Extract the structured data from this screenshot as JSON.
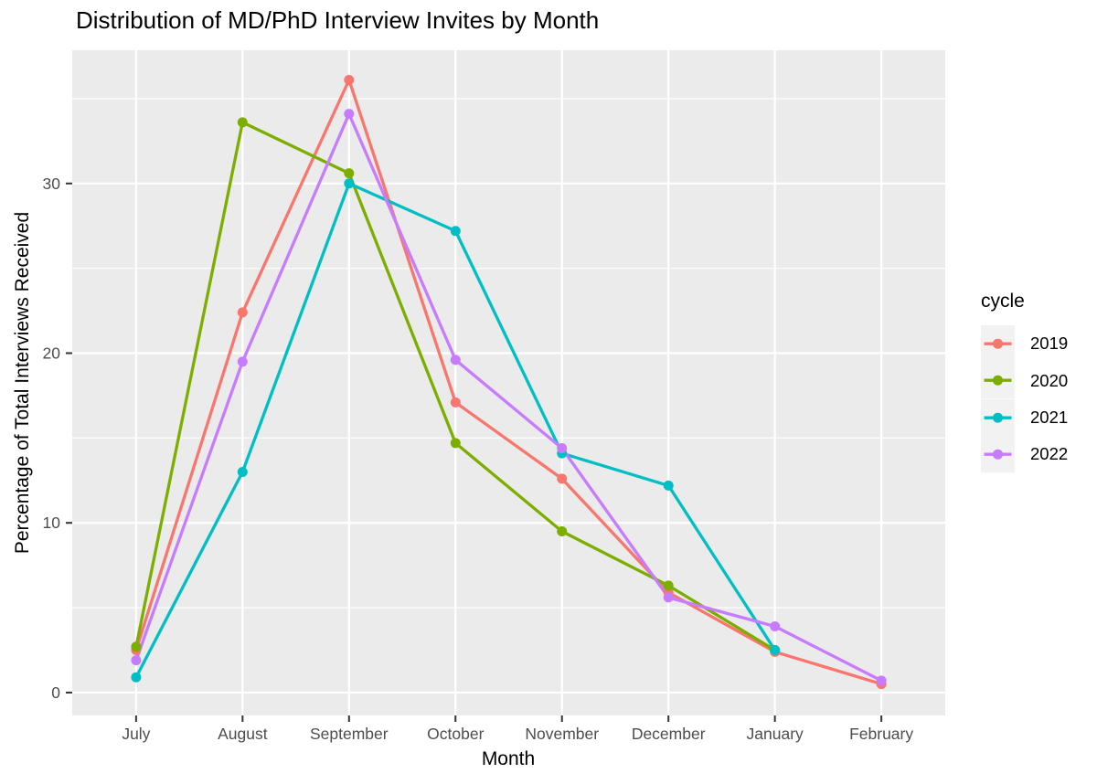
{
  "page": {
    "background": "#FFFFFF"
  },
  "chart_data": {
    "type": "line",
    "title": "Distribution of MD/PhD Interview Invites by Month",
    "xlabel": "Month",
    "ylabel": "Percentage of Total Interviews Received",
    "categories": [
      "July",
      "August",
      "September",
      "October",
      "November",
      "December",
      "January",
      "February"
    ],
    "yticks": [
      0,
      10,
      20,
      30
    ],
    "yticks_minor": [
      5,
      15,
      25,
      35
    ],
    "ylim": [
      -1.35,
      37.85
    ],
    "grid": "on",
    "legend": {
      "title": "cycle",
      "position": "right"
    },
    "series": [
      {
        "name": "2019",
        "color": "#F8766D",
        "values": [
          2.5,
          22.4,
          36.1,
          17.1,
          12.6,
          5.9,
          2.4,
          0.5
        ]
      },
      {
        "name": "2020",
        "color": "#7CAE00",
        "values": [
          2.7,
          33.6,
          30.6,
          14.7,
          9.5,
          6.3,
          2.5,
          null
        ]
      },
      {
        "name": "2021",
        "color": "#00BFC4",
        "values": [
          0.9,
          13.0,
          30.0,
          27.2,
          14.1,
          12.2,
          2.5,
          null
        ]
      },
      {
        "name": "2022",
        "color": "#C77CFF",
        "values": [
          1.9,
          19.5,
          34.1,
          19.6,
          14.4,
          5.6,
          3.9,
          0.7
        ]
      }
    ]
  },
  "colors": {
    "panel_background": "#EBEBEB",
    "gridline": "#FFFFFF",
    "axis_text": "#4D4D4D",
    "axis_tick": "#333333",
    "title_text": "#000000",
    "legend_key_background": "#F2F2F2"
  }
}
